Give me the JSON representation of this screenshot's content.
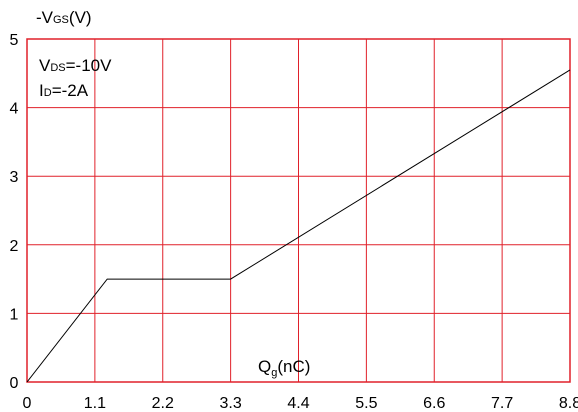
{
  "chart_data": {
    "type": "line",
    "ylabel": {
      "prefix": "-V",
      "sub": "GS",
      "suffix": "(V)"
    },
    "xlabel": {
      "prefix": "Q",
      "sub": "g",
      "suffix": "(nC)"
    },
    "x_ticks": [
      "0",
      "1.1",
      "2.2",
      "3.3",
      "4.4",
      "5.5",
      "6.6",
      "7.7",
      "8.8"
    ],
    "y_ticks": [
      "0",
      "1",
      "2",
      "3",
      "4",
      "5"
    ],
    "xlim": [
      0,
      8.8
    ],
    "ylim": [
      0,
      5
    ],
    "grid": true,
    "grid_color": "#e0202a",
    "line_color": "#000000",
    "annotations": [
      {
        "prefix": "V",
        "sub": "DS",
        "suffix": "=-10V"
      },
      {
        "prefix": "I",
        "sub": "D",
        "suffix": "=-2A"
      }
    ],
    "series": [
      {
        "x": [
          0,
          1.3,
          3.3,
          8.8
        ],
        "y": [
          0,
          1.5,
          1.5,
          4.55
        ]
      }
    ]
  }
}
